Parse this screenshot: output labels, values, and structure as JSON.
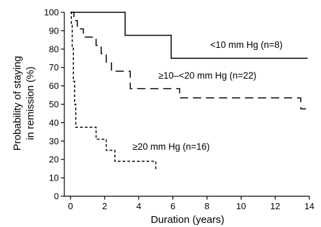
{
  "chart_data": {
    "type": "line",
    "step": true,
    "xlabel": "Duration (years)",
    "ylabel_lines": [
      "Probability of staying",
      "in remission (%)"
    ],
    "xlim": [
      0,
      14
    ],
    "ylim": [
      0,
      100
    ],
    "xticks": [
      0,
      2,
      4,
      6,
      8,
      10,
      12,
      14
    ],
    "yticks": [
      0,
      10,
      20,
      30,
      40,
      50,
      60,
      70,
      80,
      90,
      100
    ],
    "grid": false,
    "series": [
      {
        "name": "<10 mm Hg (n=8)",
        "line_style": "solid",
        "x": [
          0,
          3.2,
          3.2,
          5.9,
          5.9,
          13.9
        ],
        "y": [
          100,
          100,
          87.5,
          87.5,
          75,
          75
        ]
      },
      {
        "name": "≥10–<20 mm Hg (n=22)",
        "line_style": "long-dash",
        "x": [
          0,
          0.2,
          0.2,
          0.4,
          0.4,
          0.75,
          0.75,
          1.5,
          1.5,
          1.8,
          1.8,
          2.1,
          2.1,
          2.4,
          2.4,
          3.5,
          3.5,
          6.4,
          6.4,
          13.5,
          13.5,
          13.8
        ],
        "y": [
          100,
          100,
          95.5,
          95.5,
          91,
          91,
          86.5,
          86.5,
          82,
          82,
          77.5,
          77.5,
          72.5,
          72.5,
          68,
          68,
          58.5,
          58.5,
          53.5,
          53.5,
          47.5,
          47.5
        ]
      },
      {
        "name": "≥20 mm Hg (n=16)",
        "line_style": "short-dash",
        "x": [
          0,
          0.05,
          0.05,
          0.1,
          0.1,
          0.17,
          0.17,
          0.24,
          0.24,
          0.31,
          0.31,
          1.5,
          1.5,
          2.1,
          2.1,
          2.6,
          2.6,
          5.0,
          5.0
        ],
        "y": [
          100,
          100,
          94,
          94,
          81,
          81,
          62.5,
          62.5,
          50,
          50,
          37.5,
          37.5,
          31,
          31,
          25,
          25,
          19,
          19,
          14
        ]
      }
    ]
  }
}
